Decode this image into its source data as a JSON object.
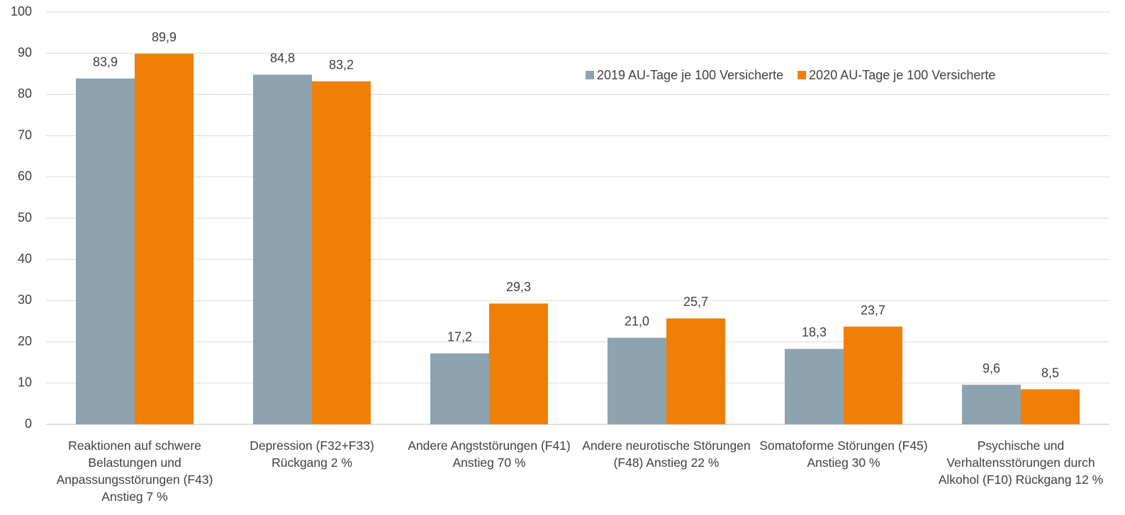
{
  "chart_data": {
    "type": "bar",
    "categories": [
      "Reaktionen auf schwere Belastungen und Anpassungsstörungen (F43) Anstieg 7 %",
      "Depression (F32+F33) Rückgang 2 %",
      "Andere Angststörungen (F41) Anstieg 70 %",
      "Andere neurotische Störungen (F48) Anstieg 22 %",
      "Somatoforme Störungen (F45) Anstieg 30 %",
      "Psychische und Verhaltensstörungen durch Alkohol (F10) Rückgang 12 %"
    ],
    "series": [
      {
        "name": "2019 AU-Tage je 100 Versicherte",
        "color": "#8ea3b0",
        "values": [
          83.9,
          84.8,
          17.2,
          21.0,
          18.3,
          9.6
        ],
        "value_labels": [
          "83,9",
          "84,8",
          "17,2",
          "21,0",
          "18,3",
          "9,6"
        ]
      },
      {
        "name": "2020 AU-Tage je 100 Versicherte",
        "color": "#f07f09",
        "values": [
          89.9,
          83.2,
          29.3,
          25.7,
          23.7,
          8.5
        ],
        "value_labels": [
          "89,9",
          "83,2",
          "29,3",
          "25,7",
          "23,7",
          "8,5"
        ]
      }
    ],
    "ylim": [
      0,
      100
    ],
    "yticks": [
      0,
      10,
      20,
      30,
      40,
      50,
      60,
      70,
      80,
      90,
      100
    ],
    "grid": true,
    "legend": "upper right"
  }
}
